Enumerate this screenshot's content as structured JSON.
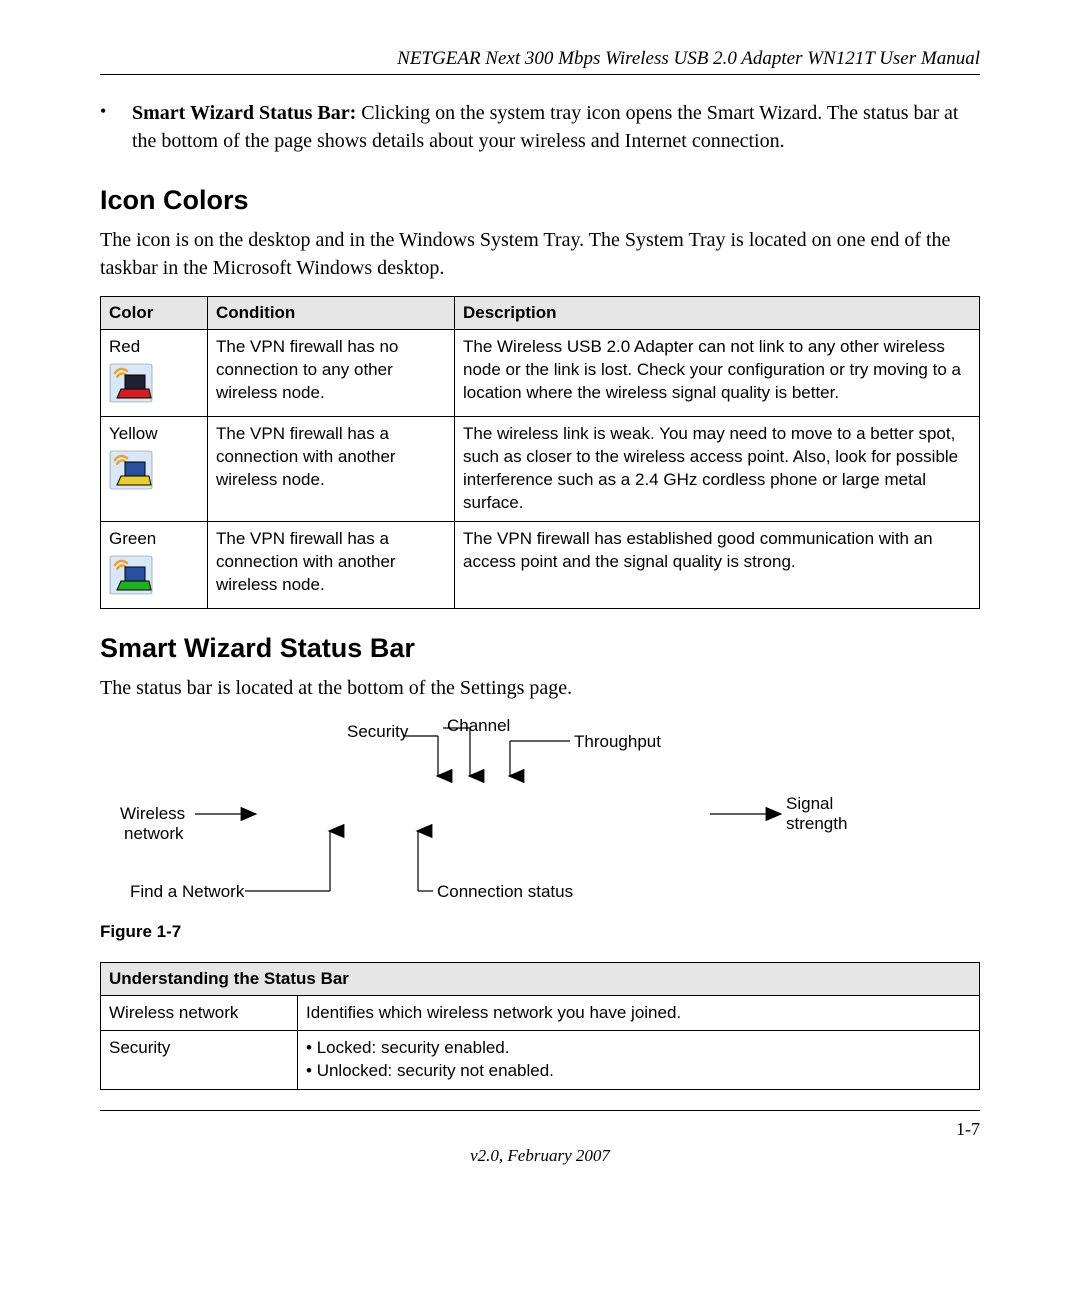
{
  "header": {
    "running_title": "NETGEAR Next 300 Mbps Wireless USB 2.0 Adapter WN121T User Manual"
  },
  "intro_bullet": {
    "bold": "Smart Wizard Status Bar:",
    "text": " Clicking on the system tray icon opens the Smart Wizard. The status bar at the bottom of the page shows details about your wireless and Internet connection."
  },
  "section_icon_colors": {
    "heading": "Icon Colors",
    "paragraph": "The icon is on the desktop and in the Windows System Tray. The System Tray is located on one end of the taskbar in the Microsoft Windows desktop."
  },
  "colors_table": {
    "headers": [
      "Color",
      "Condition",
      "Description"
    ],
    "rows": [
      {
        "color_label": "Red",
        "icon_body": "#d02020",
        "icon_screen": "#202030",
        "condition": "The VPN firewall has no connection to any other wireless node.",
        "description": "The Wireless USB 2.0 Adapter can not link to any other wireless node or the link is lost. Check your configuration or try moving to a location where the wireless signal quality is better."
      },
      {
        "color_label": "Yellow",
        "icon_body": "#e8d028",
        "icon_screen": "#2850a0",
        "condition": "The VPN firewall has a connection with another wireless node.",
        "description": "The wireless link is weak. You may need to move to a better spot, such as closer to the wireless access point. Also, look for possible interference such as a 2.4 GHz cordless phone or large metal surface."
      },
      {
        "color_label": "Green",
        "icon_body": "#20b020",
        "icon_screen": "#2850a0",
        "condition": "The VPN firewall has a connection with another wireless node.",
        "description": "The VPN firewall has established good communication with an access point and the signal quality is strong."
      }
    ]
  },
  "section_status_bar": {
    "heading": "Smart Wizard Status Bar",
    "paragraph": "The status bar is located at the bottom of the Settings page."
  },
  "figure": {
    "labels": {
      "security": "Security",
      "channel": "Channel",
      "throughput": "Throughput",
      "wireless_network_l1": "Wireless",
      "wireless_network_l2": "network",
      "signal_l1": "Signal",
      "signal_l2": "strength",
      "find_network": "Find a Network",
      "connection_status": "Connection status"
    },
    "caption": "Figure 1-7"
  },
  "status_table": {
    "header": "Understanding the Status Bar",
    "rows": [
      {
        "label": "Wireless network",
        "desc": "Identifies which wireless network you have joined."
      },
      {
        "label": "Security",
        "bullets": [
          "Locked: security enabled.",
          "Unlocked: security not enabled."
        ]
      }
    ]
  },
  "footer": {
    "page": "1-7",
    "version": "v2.0, February 2007"
  },
  "style": {
    "icon_wave_color": "#f0a020",
    "icon_outline": "#000000"
  }
}
